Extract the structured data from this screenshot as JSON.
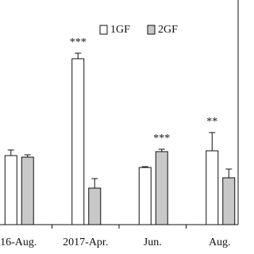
{
  "chart_data": {
    "type": "bar",
    "categories": [
      "16-Aug.",
      "2017-Apr.",
      "Jun.",
      "Aug."
    ],
    "series": [
      {
        "name": "1GF",
        "color": "#ffffff",
        "values": [
          87,
          209,
          72,
          93
        ],
        "errors": [
          7,
          7,
          1,
          23
        ]
      },
      {
        "name": "2GF",
        "color": "#c8c8c8",
        "values": [
          85,
          46,
          92,
          59
        ],
        "errors": [
          3,
          12,
          3,
          11
        ]
      }
    ],
    "annotations": [
      null,
      "***",
      "***",
      "**"
    ],
    "ylim": [
      0,
      250
    ],
    "legend": "top"
  }
}
